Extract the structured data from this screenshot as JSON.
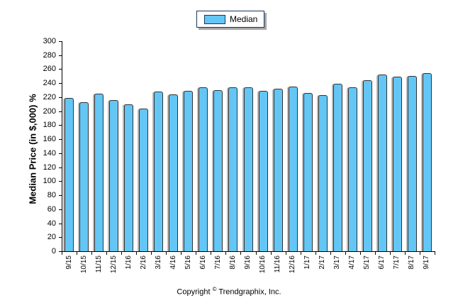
{
  "legend": {
    "label": "Median",
    "swatch_color": "#63c6f5"
  },
  "footer": {
    "prefix": "Copyright ",
    "symbol": "©",
    "suffix": " Trendgraphix, Inc."
  },
  "colors": {
    "bar_fill": "#63c6f5",
    "bar_border": "#333333",
    "bar_shadow": "#828282",
    "legend_border": "#17375e",
    "axis": "#000000"
  },
  "chart_data": {
    "type": "bar",
    "title": "",
    "series_name": "Median",
    "categories": [
      "9/15",
      "10/15",
      "11/15",
      "12/15",
      "1/16",
      "2/16",
      "3/16",
      "4/16",
      "5/16",
      "6/16",
      "7/16",
      "8/16",
      "9/16",
      "10/16",
      "11/16",
      "12/16",
      "1/17",
      "2/17",
      "3/17",
      "4/17",
      "5/17",
      "6/17",
      "7/17",
      "8/17",
      "9/17"
    ],
    "values": [
      219,
      213,
      225,
      216,
      210,
      204,
      228,
      224,
      229,
      234,
      230,
      234,
      234,
      229,
      232,
      235,
      226,
      223,
      239,
      234,
      244,
      252,
      249,
      250,
      254
    ],
    "xlabel": "",
    "ylabel": "Median Price (in $,000) %",
    "ylim": [
      0,
      300
    ],
    "ytick_step": 20,
    "grid": false,
    "legend_position": "top-center"
  }
}
